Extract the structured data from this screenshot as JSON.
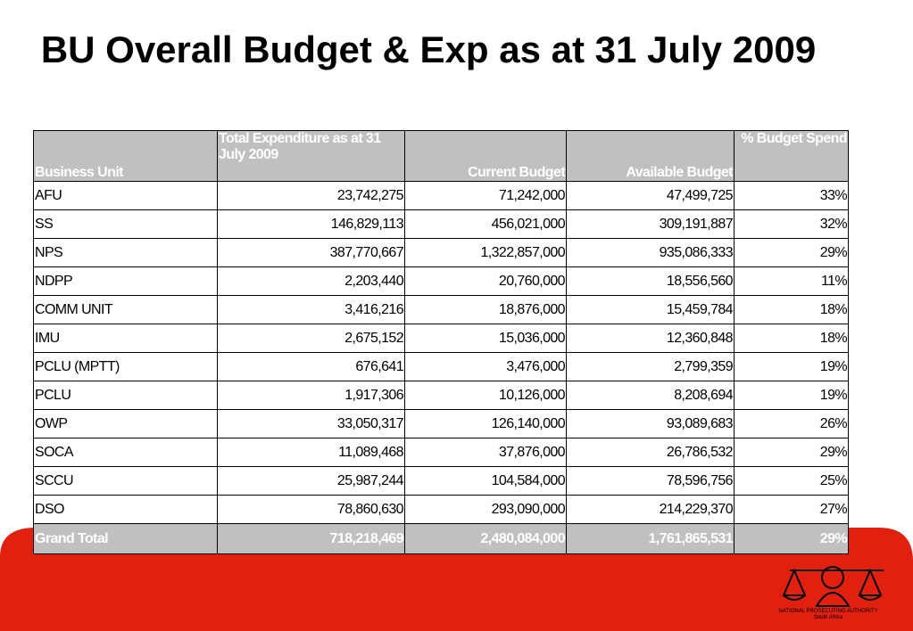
{
  "header": {
    "title": "BU Overall Budget & Exp as at 31 July 2009"
  },
  "table": {
    "columns": [
      "Business Unit",
      "Total Expenditure as at 31 July 2009",
      "Current Budget",
      "Available Budget",
      "% Budget Spend"
    ],
    "rows": [
      [
        "AFU",
        "23,742,275",
        "71,242,000",
        "47,499,725",
        "33%"
      ],
      [
        "SS",
        "146,829,113",
        "456,021,000",
        "309,191,887",
        "32%"
      ],
      [
        "NPS",
        "387,770,667",
        "1,322,857,000",
        "935,086,333",
        "29%"
      ],
      [
        "NDPP",
        "2,203,440",
        "20,760,000",
        "18,556,560",
        "11%"
      ],
      [
        "COMM UNIT",
        "3,416,216",
        "18,876,000",
        "15,459,784",
        "18%"
      ],
      [
        "IMU",
        "2,675,152",
        "15,036,000",
        "12,360,848",
        "18%"
      ],
      [
        "PCLU (MPTT)",
        "676,641",
        "3,476,000",
        "2,799,359",
        "19%"
      ],
      [
        "PCLU",
        "1,917,306",
        "10,126,000",
        "8,208,694",
        "19%"
      ],
      [
        "OWP",
        "33,050,317",
        "126,140,000",
        "93,089,683",
        "26%"
      ],
      [
        "SOCA",
        "11,089,468",
        "37,876,000",
        "26,786,532",
        "29%"
      ],
      [
        "SCCU",
        "25,987,244",
        "104,584,000",
        "78,596,756",
        "25%"
      ],
      [
        "DSO",
        "78,860,630",
        "293,090,000",
        "214,229,370",
        "27%"
      ]
    ],
    "total": [
      "Grand Total",
      "718,218,469",
      "2,480,084,000",
      "1,761,865,531",
      "29%"
    ]
  },
  "logo": {
    "name": "NATIONAL PROSECUTING AUTHORITY",
    "country": "South Africa"
  }
}
